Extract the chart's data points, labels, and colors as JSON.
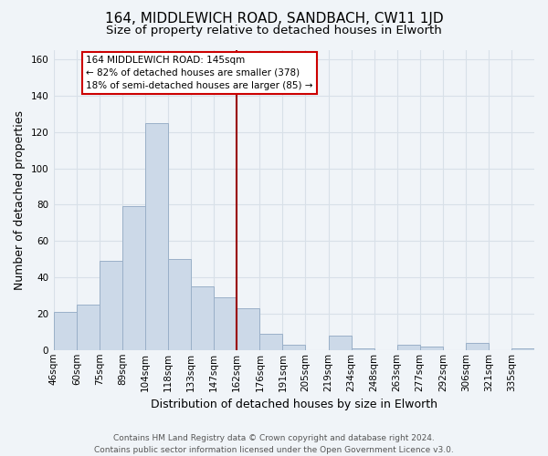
{
  "title": "164, MIDDLEWICH ROAD, SANDBACH, CW11 1JD",
  "subtitle": "Size of property relative to detached houses in Elworth",
  "xlabel": "Distribution of detached houses by size in Elworth",
  "ylabel": "Number of detached properties",
  "bar_labels": [
    "46sqm",
    "60sqm",
    "75sqm",
    "89sqm",
    "104sqm",
    "118sqm",
    "133sqm",
    "147sqm",
    "162sqm",
    "176sqm",
    "191sqm",
    "205sqm",
    "219sqm",
    "234sqm",
    "248sqm",
    "263sqm",
    "277sqm",
    "292sqm",
    "306sqm",
    "321sqm",
    "335sqm"
  ],
  "bar_values": [
    21,
    25,
    49,
    79,
    125,
    50,
    35,
    29,
    23,
    9,
    3,
    0,
    8,
    1,
    0,
    3,
    2,
    0,
    4,
    0,
    1
  ],
  "bar_color": "#ccd9e8",
  "bar_edge_color": "#9ab0c8",
  "vline_color": "#990000",
  "annotation_text": "164 MIDDLEWICH ROAD: 145sqm\n← 82% of detached houses are smaller (378)\n18% of semi-detached houses are larger (85) →",
  "annotation_box_color": "white",
  "annotation_box_edge_color": "#cc0000",
  "ylim": [
    0,
    165
  ],
  "yticks": [
    0,
    20,
    40,
    60,
    80,
    100,
    120,
    140,
    160
  ],
  "footer_line1": "Contains HM Land Registry data © Crown copyright and database right 2024.",
  "footer_line2": "Contains public sector information licensed under the Open Government Licence v3.0.",
  "bg_color": "#f0f4f8",
  "plot_bg_color": "#f0f4f8",
  "grid_color": "#d8e0e8",
  "title_fontsize": 11,
  "subtitle_fontsize": 9.5,
  "label_fontsize": 9,
  "tick_fontsize": 7.5,
  "footer_fontsize": 6.5
}
